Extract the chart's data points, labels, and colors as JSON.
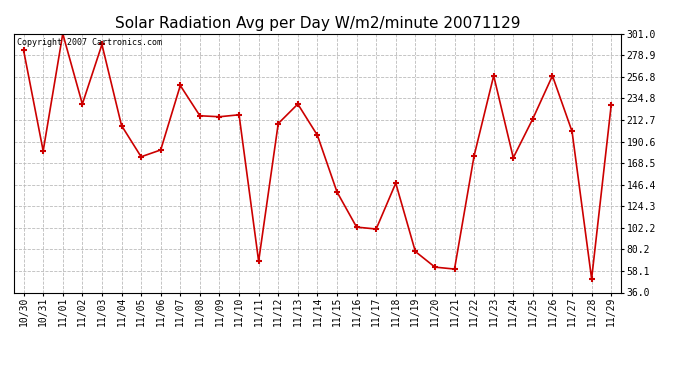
{
  "title": "Solar Radiation Avg per Day W/m2/minute 20071129",
  "copyright_text": "Copyright 2007 Cartronics.com",
  "x_labels": [
    "10/30",
    "10/31",
    "11/01",
    "11/02",
    "11/03",
    "11/04",
    "11/05",
    "11/06",
    "11/07",
    "11/08",
    "11/09",
    "11/10",
    "11/11",
    "11/12",
    "11/13",
    "11/14",
    "11/15",
    "11/16",
    "11/17",
    "11/18",
    "11/19",
    "11/20",
    "11/21",
    "11/22",
    "11/23",
    "11/24",
    "11/25",
    "11/26",
    "11/27",
    "11/28",
    "11/29"
  ],
  "y_values": [
    284.0,
    181.0,
    301.0,
    229.0,
    290.0,
    207.0,
    175.0,
    182.0,
    248.0,
    217.0,
    216.0,
    218.0,
    68.0,
    209.0,
    229.0,
    197.0,
    139.0,
    103.0,
    101.0,
    148.0,
    78.0,
    62.0,
    60.0,
    176.0,
    258.0,
    174.0,
    214.0,
    258.0,
    201.0,
    50.0,
    228.0
  ],
  "line_color": "#cc0000",
  "marker_color": "#cc0000",
  "bg_color": "#ffffff",
  "grid_color": "#bbbbbb",
  "y_ticks": [
    36.0,
    58.1,
    80.2,
    102.2,
    124.3,
    146.4,
    168.5,
    190.6,
    212.7,
    234.8,
    256.8,
    278.9,
    301.0
  ],
  "ylim": [
    36.0,
    301.0
  ],
  "title_fontsize": 11,
  "tick_fontsize": 7,
  "copyright_fontsize": 6
}
